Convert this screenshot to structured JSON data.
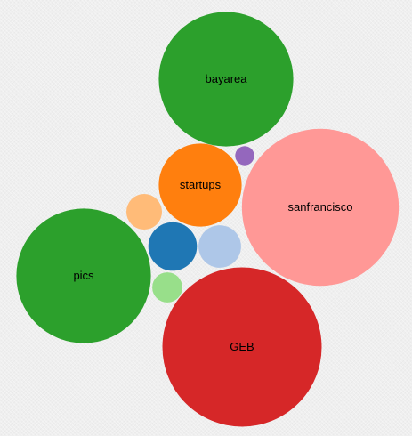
{
  "chart_data": {
    "type": "bubble",
    "title": "",
    "nodes": [
      {
        "label": "bayarea",
        "value": 100,
        "color": "#2ca02c"
      },
      {
        "label": "sanfrancisco",
        "value": 136,
        "color": "#ff9896"
      },
      {
        "label": "startups",
        "value": 38,
        "color": "#ff7f0e"
      },
      {
        "label": "pics",
        "value": 100,
        "color": "#2ca02c"
      },
      {
        "label": "GEB",
        "value": 140,
        "color": "#d62728"
      },
      {
        "label": "",
        "value": 13,
        "color": "#1f77b4"
      },
      {
        "label": "",
        "value": 10,
        "color": "#aec7e8"
      },
      {
        "label": "",
        "value": 7,
        "color": "#ffbb78"
      },
      {
        "label": "",
        "value": 5,
        "color": "#98df8a"
      },
      {
        "label": "",
        "value": 2,
        "color": "#9467bd"
      }
    ]
  }
}
